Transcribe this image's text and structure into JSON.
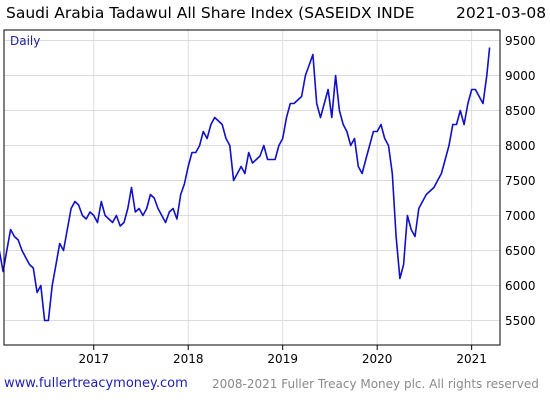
{
  "header": {
    "title": "Saudi Arabia Tadawul All Share Index (SASEIDX INDE",
    "date": "2021-03-08"
  },
  "footer": {
    "site": "www.fullertreacymoney.com",
    "copyright": "2008-2021 Fuller Treacy Money plc. All rights reserved"
  },
  "colors": {
    "line": "#1010c8",
    "grid": "#dcdcdc",
    "frame": "#000000",
    "legend_text": "#2020a0"
  },
  "chart_data": {
    "type": "line",
    "title": "Saudi Arabia Tadawul All Share Index (SASEIDX INDE",
    "legend": "Daily",
    "legend_placement": "top-left",
    "grid": true,
    "y_axis_side": "right",
    "xlim": [
      2016.05,
      2021.3
    ],
    "ylim": [
      5150,
      9650
    ],
    "x_ticks": [
      2017,
      2018,
      2019,
      2020,
      2021
    ],
    "x_tick_labels": [
      "2017",
      "2018",
      "2019",
      "2020",
      "2021"
    ],
    "y_ticks": [
      5500,
      6000,
      6500,
      7000,
      7500,
      8000,
      8500,
      9000,
      9500
    ],
    "y_tick_labels": [
      "5500",
      "6000",
      "6500",
      "7000",
      "7500",
      "8000",
      "8500",
      "9000",
      "9500"
    ],
    "series": [
      {
        "x": [
          2016.0,
          2016.04,
          2016.08,
          2016.12,
          2016.16,
          2016.2,
          2016.24,
          2016.28,
          2016.32,
          2016.36,
          2016.4,
          2016.44,
          2016.48,
          2016.52,
          2016.56,
          2016.6,
          2016.64,
          2016.68,
          2016.72,
          2016.76,
          2016.8,
          2016.84,
          2016.88,
          2016.92,
          2016.96,
          2017.0,
          2017.04,
          2017.08,
          2017.12,
          2017.16,
          2017.2,
          2017.24,
          2017.28,
          2017.32,
          2017.36,
          2017.4,
          2017.44,
          2017.48,
          2017.52,
          2017.56,
          2017.6,
          2017.64,
          2017.68,
          2017.72,
          2017.76,
          2017.8,
          2017.84,
          2017.88,
          2017.92,
          2017.96,
          2018.0,
          2018.04,
          2018.08,
          2018.12,
          2018.16,
          2018.2,
          2018.24,
          2018.28,
          2018.32,
          2018.36,
          2018.4,
          2018.44,
          2018.48,
          2018.52,
          2018.56,
          2018.6,
          2018.64,
          2018.68,
          2018.72,
          2018.76,
          2018.8,
          2018.84,
          2018.88,
          2018.92,
          2018.96,
          2019.0,
          2019.04,
          2019.08,
          2019.12,
          2019.16,
          2019.2,
          2019.24,
          2019.28,
          2019.32,
          2019.36,
          2019.4,
          2019.44,
          2019.48,
          2019.52,
          2019.56,
          2019.6,
          2019.64,
          2019.68,
          2019.72,
          2019.76,
          2019.8,
          2019.84,
          2019.88,
          2019.92,
          2019.96,
          2020.0,
          2020.04,
          2020.08,
          2020.12,
          2020.16,
          2020.2,
          2020.24,
          2020.28,
          2020.32,
          2020.36,
          2020.4,
          2020.44,
          2020.48,
          2020.52,
          2020.56,
          2020.6,
          2020.64,
          2020.68,
          2020.72,
          2020.76,
          2020.8,
          2020.84,
          2020.88,
          2020.92,
          2020.96,
          2021.0,
          2021.04,
          2021.08,
          2021.12,
          2021.16,
          2021.19
        ],
        "y": [
          6500,
          6200,
          6500,
          6800,
          6700,
          6650,
          6500,
          6400,
          6300,
          6250,
          5900,
          6000,
          5500,
          5500,
          6000,
          6300,
          6600,
          6500,
          6800,
          7100,
          7200,
          7150,
          7000,
          6950,
          7050,
          7000,
          6900,
          7200,
          7000,
          6950,
          6900,
          7000,
          6850,
          6900,
          7100,
          7400,
          7050,
          7100,
          7000,
          7100,
          7300,
          7250,
          7100,
          7000,
          6900,
          7050,
          7100,
          6950,
          7300,
          7450,
          7700,
          7900,
          7900,
          8000,
          8200,
          8100,
          8300,
          8400,
          8350,
          8300,
          8100,
          8000,
          7500,
          7600,
          7700,
          7600,
          7900,
          7750,
          7800,
          7850,
          8000,
          7800,
          7800,
          7800,
          8000,
          8100,
          8400,
          8600,
          8600,
          8650,
          8700,
          9000,
          9150,
          9300,
          8600,
          8400,
          8600,
          8800,
          8400,
          9000,
          8500,
          8300,
          8200,
          8000,
          8100,
          7700,
          7600,
          7800,
          8000,
          8200,
          8200,
          8300,
          8100,
          8000,
          7600,
          6700,
          6100,
          6300,
          7000,
          6800,
          6700,
          7100,
          7200,
          7300,
          7350,
          7400,
          7500,
          7600,
          7800,
          8000,
          8300,
          8300,
          8500,
          8300,
          8600,
          8800,
          8800,
          8700,
          8600,
          9000,
          9400
        ],
        "color": "#1010c8"
      }
    ]
  }
}
